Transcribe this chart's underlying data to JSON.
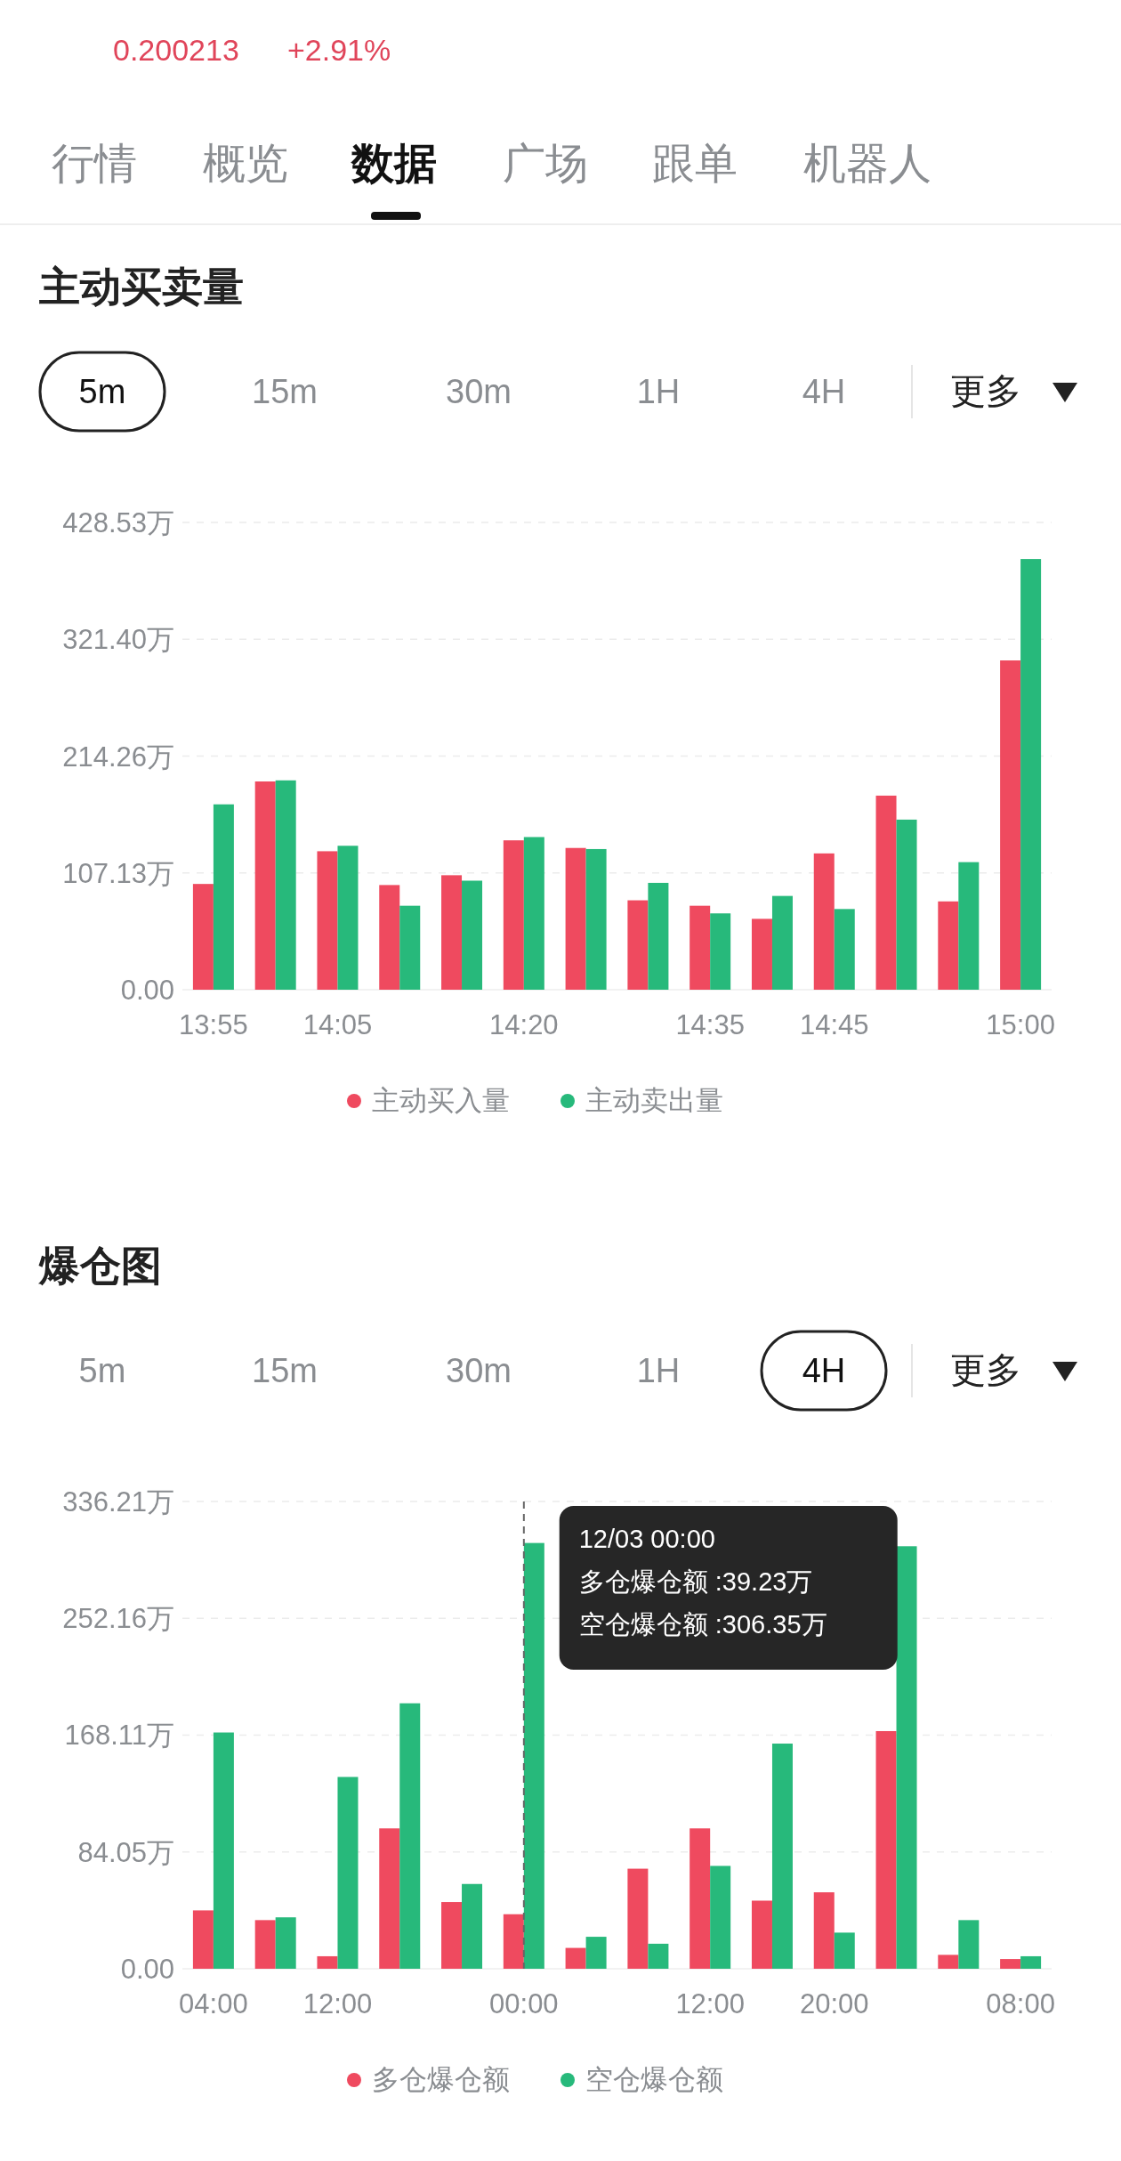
{
  "chart_data": [
    {
      "type": "other",
      "annotations": [
        "0.200213",
        "+2.91%",
        "行情",
        "概览",
        "数据",
        "广场",
        "跟单",
        "机器人"
      ]
    },
    {
      "type": "bar",
      "title": "主动买卖量",
      "annotations": [
        "5m",
        "15m",
        "30m",
        "1H",
        "4H",
        "更多"
      ],
      "categories": [
        "13:55",
        null,
        "14:05",
        null,
        null,
        "14:20",
        null,
        null,
        "14:35",
        null,
        "14:45",
        null,
        null,
        "15:00"
      ],
      "series": [
        {
          "name": "主动买入量",
          "color": "#ef4a5f",
          "values": [
            97,
            191,
            127,
            96,
            105,
            137,
            130,
            82,
            77,
            65,
            125,
            178,
            81,
            302
          ]
        },
        {
          "name": "主动卖出量",
          "color": "#27b97b",
          "values": [
            170,
            192,
            132,
            77,
            100,
            140,
            129,
            98,
            70,
            86,
            74,
            156,
            117,
            395
          ]
        }
      ],
      "ylim": [
        0,
        428.53
      ],
      "yticks": [
        {
          "value": 0,
          "label": "0.00"
        },
        {
          "value": 107.13,
          "label": "107.13万"
        },
        {
          "value": 214.26,
          "label": "214.26万"
        },
        {
          "value": 321.4,
          "label": "321.40万"
        },
        {
          "value": 428.53,
          "label": "428.53万"
        }
      ],
      "grid": "y",
      "legend": "bottom"
    },
    {
      "type": "bar",
      "title": "爆仓图",
      "annotations": [
        "5m",
        "15m",
        "30m",
        "1H",
        "4H",
        "更多",
        "12/03 00:00",
        "多仓爆仓额 :39.23万",
        "空仓爆仓额 :306.35万"
      ],
      "categories": [
        "04:00",
        null,
        "12:00",
        null,
        null,
        "00:00",
        null,
        null,
        "12:00",
        null,
        "20:00",
        null,
        null,
        "08:00"
      ],
      "series": [
        {
          "name": "多仓爆仓额",
          "color": "#ef4a5f",
          "values": [
            42,
            35,
            9,
            101,
            48,
            39.23,
            15,
            72,
            101,
            49,
            55,
            171,
            10,
            7
          ]
        },
        {
          "name": "空仓爆仓额",
          "color": "#27b97b",
          "values": [
            170,
            37,
            138,
            191,
            61,
            306.35,
            23,
            18,
            74,
            162,
            26,
            304,
            35,
            9
          ]
        }
      ],
      "ylim": [
        0,
        336.21
      ],
      "yticks": [
        {
          "value": 0,
          "label": "0.00"
        },
        {
          "value": 84.05,
          "label": "84.05万"
        },
        {
          "value": 168.11,
          "label": "168.11万"
        },
        {
          "value": 252.16,
          "label": "252.16万"
        },
        {
          "value": 336.21,
          "label": "336.21万"
        }
      ],
      "grid": "y",
      "legend": "bottom"
    }
  ]
}
